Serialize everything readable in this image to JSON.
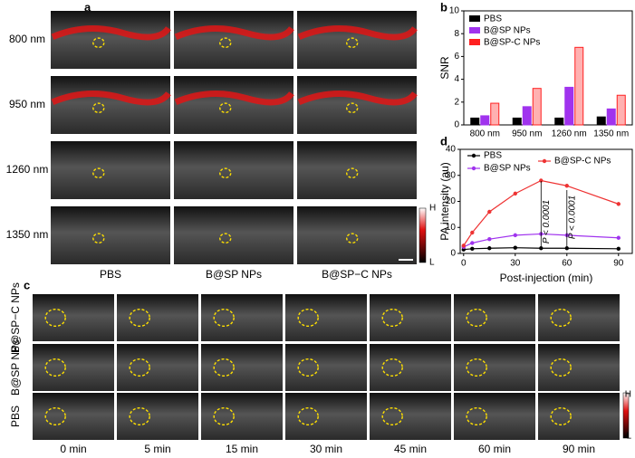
{
  "panel_labels": [
    "a",
    "b",
    "c",
    "d"
  ],
  "panel_a": {
    "row_labels": [
      "800 nm",
      "950 nm",
      "1260 nm",
      "1350 nm"
    ],
    "column_labels": [
      "PBS",
      "B@SP NPs",
      "B@SP−C NPs"
    ],
    "colorbar": {
      "high": "H",
      "low": "L"
    }
  },
  "panel_c": {
    "row_labels": [
      "B@SP−C NPs",
      "B@SP NPs",
      "PBS"
    ],
    "column_labels": [
      "0 min",
      "5 min",
      "15 min",
      "30 min",
      "45 min",
      "60 min",
      "90 min"
    ],
    "colorbar": {
      "high": "H",
      "low": "L"
    }
  },
  "chart_data": [
    {
      "type": "bar",
      "ylabel": "SNR",
      "categories": [
        "800 nm",
        "950 nm",
        "1260 nm",
        "1350 nm"
      ],
      "series": [
        {
          "name": "PBS",
          "color": "#000000",
          "values": [
            0.6,
            0.6,
            0.6,
            0.7
          ]
        },
        {
          "name": "B@SP NPs",
          "color": "#a033ee",
          "values": [
            0.8,
            1.6,
            3.3,
            1.4
          ]
        },
        {
          "name": "B@SP-C NPs",
          "color": "#ff2020",
          "values": [
            1.9,
            3.2,
            6.8,
            2.6
          ]
        }
      ],
      "ylim": [
        0,
        10
      ],
      "yticks": [
        0,
        2,
        4,
        6,
        8,
        10
      ]
    },
    {
      "type": "line",
      "xlabel": "Post-injection (min)",
      "ylabel": "PA intensity (au)",
      "x": [
        0,
        5,
        15,
        30,
        45,
        60,
        90
      ],
      "series": [
        {
          "name": "PBS",
          "color": "#000000",
          "values": [
            1.5,
            1.8,
            2,
            2.2,
            2,
            2,
            1.8
          ]
        },
        {
          "name": "B@SP NPs",
          "color": "#a033ee",
          "values": [
            2.5,
            4,
            5.5,
            7,
            7.5,
            7,
            6
          ]
        },
        {
          "name": "B@SP-C NPs",
          "color": "#ee3333",
          "values": [
            3,
            8,
            16,
            23,
            28,
            26,
            19
          ]
        }
      ],
      "xlim": [
        -2,
        98
      ],
      "xticks": [
        0,
        30,
        60,
        90
      ],
      "ylim": [
        0,
        40
      ],
      "yticks": [
        0,
        10,
        20,
        30,
        40
      ],
      "annotations": [
        "P < 0.0001",
        "P < 0.0001"
      ]
    }
  ]
}
